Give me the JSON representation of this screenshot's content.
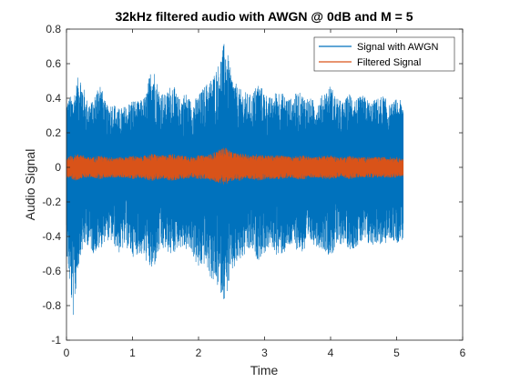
{
  "chart_data": {
    "type": "line",
    "title": "32kHz filtered audio with AWGN @ 0dB and M = 5",
    "xlabel": "Time",
    "ylabel": "Audio Signal",
    "xlim": [
      0,
      6
    ],
    "ylim": [
      -1,
      0.8
    ],
    "xticks": [
      "0",
      "1",
      "2",
      "3",
      "4",
      "5",
      "6"
    ],
    "yticks": [
      "-1",
      "-0.8",
      "-0.6",
      "-0.4",
      "-0.2",
      "0",
      "0.2",
      "0.4",
      "0.6",
      "0.8"
    ],
    "grid": false,
    "legend_position": "top-right",
    "series": [
      {
        "name": "Signal with AWGN",
        "color": "#0072BD",
        "envelope": {
          "x": [
            0,
            0.1,
            0.2,
            0.3,
            0.4,
            0.5,
            0.6,
            0.7,
            0.8,
            0.9,
            1.0,
            1.1,
            1.2,
            1.3,
            1.4,
            1.5,
            1.6,
            1.7,
            1.8,
            1.9,
            2.0,
            2.1,
            2.2,
            2.3,
            2.4,
            2.5,
            2.6,
            2.7,
            2.8,
            2.9,
            3.0,
            3.1,
            3.2,
            3.3,
            3.4,
            3.5,
            3.6,
            3.7,
            3.8,
            3.9,
            4.0,
            4.1,
            4.2,
            4.3,
            4.4,
            4.5,
            4.6,
            4.7,
            4.8,
            4.9,
            5.0,
            5.1
          ],
          "upper": [
            0.4,
            0.42,
            0.56,
            0.4,
            0.38,
            0.52,
            0.36,
            0.38,
            0.34,
            0.36,
            0.4,
            0.38,
            0.42,
            0.62,
            0.46,
            0.42,
            0.5,
            0.4,
            0.44,
            0.38,
            0.42,
            0.48,
            0.52,
            0.6,
            0.74,
            0.54,
            0.46,
            0.44,
            0.42,
            0.5,
            0.44,
            0.4,
            0.46,
            0.42,
            0.4,
            0.44,
            0.42,
            0.4,
            0.38,
            0.44,
            0.48,
            0.4,
            0.38,
            0.44,
            0.4,
            0.42,
            0.38,
            0.4,
            0.42,
            0.36,
            0.4,
            0.38
          ],
          "lower": [
            -0.5,
            -0.88,
            -0.52,
            -0.44,
            -0.5,
            -0.48,
            -0.42,
            -0.44,
            -0.5,
            -0.46,
            -0.52,
            -0.5,
            -0.54,
            -0.62,
            -0.5,
            -0.48,
            -0.52,
            -0.46,
            -0.48,
            -0.5,
            -0.6,
            -0.56,
            -0.66,
            -0.7,
            -0.78,
            -0.62,
            -0.56,
            -0.52,
            -0.48,
            -0.54,
            -0.5,
            -0.46,
            -0.52,
            -0.5,
            -0.46,
            -0.48,
            -0.5,
            -0.44,
            -0.46,
            -0.48,
            -0.52,
            -0.46,
            -0.44,
            -0.48,
            -0.46,
            -0.44,
            -0.46,
            -0.44,
            -0.46,
            -0.42,
            -0.44,
            -0.42
          ]
        }
      },
      {
        "name": "Filtered Signal",
        "color": "#D95319",
        "envelope": {
          "x": [
            0,
            0.1,
            0.2,
            0.3,
            0.4,
            0.5,
            0.6,
            0.7,
            0.8,
            0.9,
            1.0,
            1.1,
            1.2,
            1.3,
            1.4,
            1.5,
            1.6,
            1.7,
            1.8,
            1.9,
            2.0,
            2.1,
            2.2,
            2.3,
            2.4,
            2.5,
            2.6,
            2.7,
            2.8,
            2.9,
            3.0,
            3.1,
            3.2,
            3.3,
            3.4,
            3.5,
            3.6,
            3.7,
            3.8,
            3.9,
            4.0,
            4.1,
            4.2,
            4.3,
            4.4,
            4.5,
            4.6,
            4.7,
            4.8,
            4.9,
            5.0,
            5.1
          ],
          "upper": [
            0.06,
            0.07,
            0.08,
            0.06,
            0.06,
            0.07,
            0.06,
            0.06,
            0.06,
            0.06,
            0.07,
            0.06,
            0.07,
            0.08,
            0.07,
            0.07,
            0.08,
            0.07,
            0.07,
            0.06,
            0.07,
            0.07,
            0.08,
            0.1,
            0.12,
            0.09,
            0.08,
            0.08,
            0.07,
            0.08,
            0.07,
            0.07,
            0.07,
            0.07,
            0.06,
            0.07,
            0.07,
            0.06,
            0.06,
            0.07,
            0.07,
            0.06,
            0.06,
            0.07,
            0.06,
            0.06,
            0.06,
            0.06,
            0.06,
            0.06,
            0.06,
            0.05
          ],
          "lower": [
            -0.06,
            -0.08,
            -0.07,
            -0.06,
            -0.06,
            -0.07,
            -0.06,
            -0.06,
            -0.06,
            -0.06,
            -0.07,
            -0.06,
            -0.07,
            -0.08,
            -0.07,
            -0.07,
            -0.08,
            -0.07,
            -0.07,
            -0.06,
            -0.07,
            -0.07,
            -0.08,
            -0.09,
            -0.1,
            -0.08,
            -0.08,
            -0.07,
            -0.07,
            -0.08,
            -0.07,
            -0.07,
            -0.07,
            -0.07,
            -0.06,
            -0.07,
            -0.07,
            -0.06,
            -0.06,
            -0.07,
            -0.07,
            -0.06,
            -0.06,
            -0.07,
            -0.06,
            -0.06,
            -0.06,
            -0.06,
            -0.06,
            -0.06,
            -0.06,
            -0.05
          ]
        }
      }
    ]
  }
}
